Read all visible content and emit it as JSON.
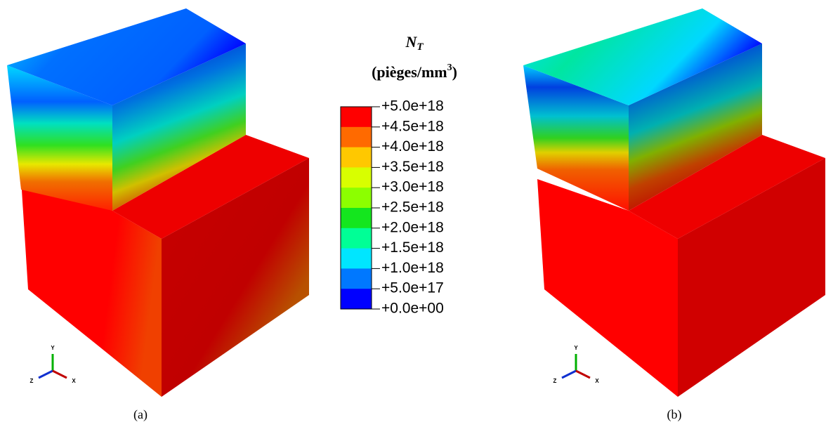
{
  "legend": {
    "title": {
      "symbol": "N",
      "subscript": "T"
    },
    "unit": {
      "text": "(pièges/mm",
      "sup": "3",
      "close": ")"
    },
    "labels": [
      "+5.0e+18",
      "+4.5e+18",
      "+4.0e+18",
      "+3.5e+18",
      "+3.0e+18",
      "+2.5e+18",
      "+2.0e+18",
      "+1.5e+18",
      "+1.0e+18",
      "+5.0e+17",
      "+0.0e+00"
    ],
    "colors": [
      "#ff0000",
      "#ff6a00",
      "#ffc800",
      "#d8ff00",
      "#8cff00",
      "#14e61e",
      "#00ff96",
      "#00e6ff",
      "#0078ff",
      "#0000ff"
    ]
  },
  "panels": [
    {
      "caption": "(a)",
      "axes": [
        "Y",
        "Z",
        "X"
      ]
    },
    {
      "caption": "(b)",
      "axes": [
        "Y",
        "Z",
        "X"
      ]
    }
  ]
}
